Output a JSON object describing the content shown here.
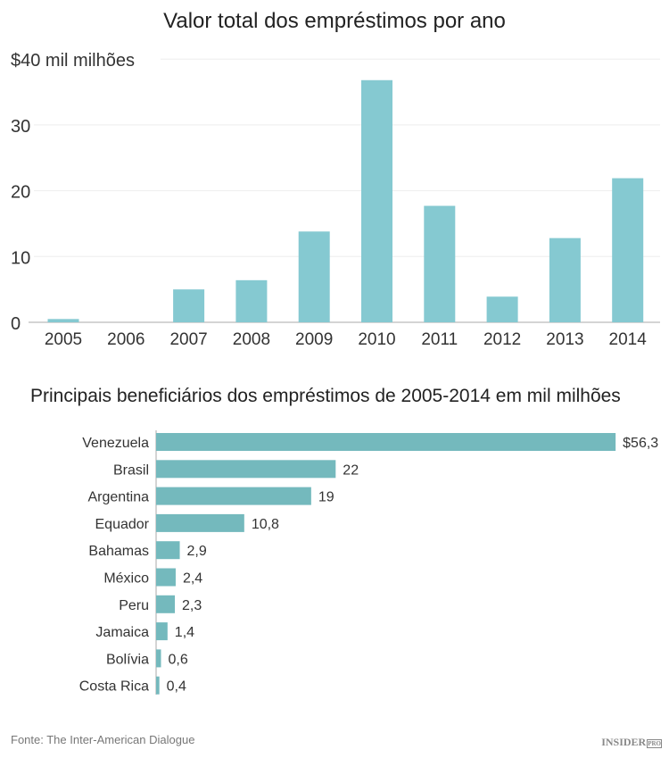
{
  "chart_data": [
    {
      "type": "bar",
      "title": "Valor total dos empréstimos por ano",
      "ylabel": "$40 mil milhões",
      "categories": [
        "2005",
        "2006",
        "2007",
        "2008",
        "2009",
        "2010",
        "2011",
        "2012",
        "2013",
        "2014"
      ],
      "values": [
        0.5,
        0,
        5.0,
        6.4,
        13.8,
        36.8,
        17.7,
        3.9,
        12.8,
        21.9
      ],
      "yticks": [
        "0",
        "10",
        "20",
        "30",
        "$40 mil milhões"
      ],
      "ylim": [
        0,
        40
      ],
      "grid": true,
      "color": "#85c9d1"
    },
    {
      "type": "bar",
      "orientation": "horizontal",
      "title": "Principais beneficiários dos empréstimos de 2005-2014 em mil milhões",
      "categories": [
        "Venezuela",
        "Brasil",
        "Argentina",
        "Equador",
        "Bahamas",
        "México",
        "Peru",
        "Jamaica",
        "Bolívia",
        "Costa Rica"
      ],
      "values": [
        56.3,
        22,
        19,
        10.8,
        2.9,
        2.4,
        2.3,
        1.4,
        0.6,
        0.4
      ],
      "labels": [
        "$56,3",
        "22",
        "19",
        "10,8",
        "2,9",
        "2,4",
        "2,3",
        "1,4",
        "0,6",
        "0,4"
      ],
      "color": "#74b9bd"
    }
  ],
  "footer": {
    "source": "Fonte: The Inter-American Dialogue",
    "logo": "INSIDER PRO"
  }
}
